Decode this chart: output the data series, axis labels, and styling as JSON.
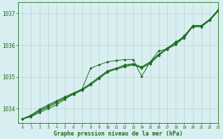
{
  "bg_color": "#d8eef0",
  "grid_color": "#c8dfe0",
  "line_color": "#1a6e1a",
  "marker_color": "#1a6e1a",
  "xlabel": "Graphe pression niveau de la mer (hPa)",
  "xlim": [
    -0.5,
    23
  ],
  "ylim": [
    1033.55,
    1037.35
  ],
  "yticks": [
    1034,
    1035,
    1036,
    1037
  ],
  "xticks": [
    0,
    1,
    2,
    3,
    4,
    5,
    6,
    7,
    8,
    9,
    10,
    11,
    12,
    13,
    14,
    15,
    16,
    17,
    18,
    19,
    20,
    21,
    22,
    23
  ],
  "series": [
    [
      1033.68,
      1033.75,
      1033.88,
      1034.0,
      1034.12,
      1034.3,
      1034.48,
      1034.62,
      1035.28,
      1035.38,
      1035.48,
      1035.52,
      1035.55,
      1035.55,
      1035.02,
      1035.48,
      1035.82,
      1035.88,
      1036.12,
      1036.22,
      1036.62,
      1036.62,
      1036.82,
      1037.12
    ],
    [
      1033.68,
      1033.75,
      1033.92,
      1034.05,
      1034.18,
      1034.33,
      1034.45,
      1034.58,
      1034.75,
      1034.95,
      1035.15,
      1035.25,
      1035.32,
      1035.38,
      1035.28,
      1035.42,
      1035.68,
      1035.88,
      1036.02,
      1036.25,
      1036.58,
      1036.58,
      1036.78,
      1037.08
    ],
    [
      1033.68,
      1033.78,
      1033.95,
      1034.08,
      1034.22,
      1034.35,
      1034.48,
      1034.6,
      1034.78,
      1034.98,
      1035.18,
      1035.25,
      1035.35,
      1035.4,
      1035.3,
      1035.45,
      1035.7,
      1035.9,
      1036.05,
      1036.28,
      1036.6,
      1036.6,
      1036.8,
      1037.1
    ],
    [
      1033.68,
      1033.8,
      1033.98,
      1034.12,
      1034.25,
      1034.38,
      1034.5,
      1034.62,
      1034.8,
      1035.0,
      1035.2,
      1035.28,
      1035.38,
      1035.42,
      1035.32,
      1035.48,
      1035.72,
      1035.92,
      1036.08,
      1036.3,
      1036.62,
      1036.62,
      1036.82,
      1037.12
    ]
  ]
}
